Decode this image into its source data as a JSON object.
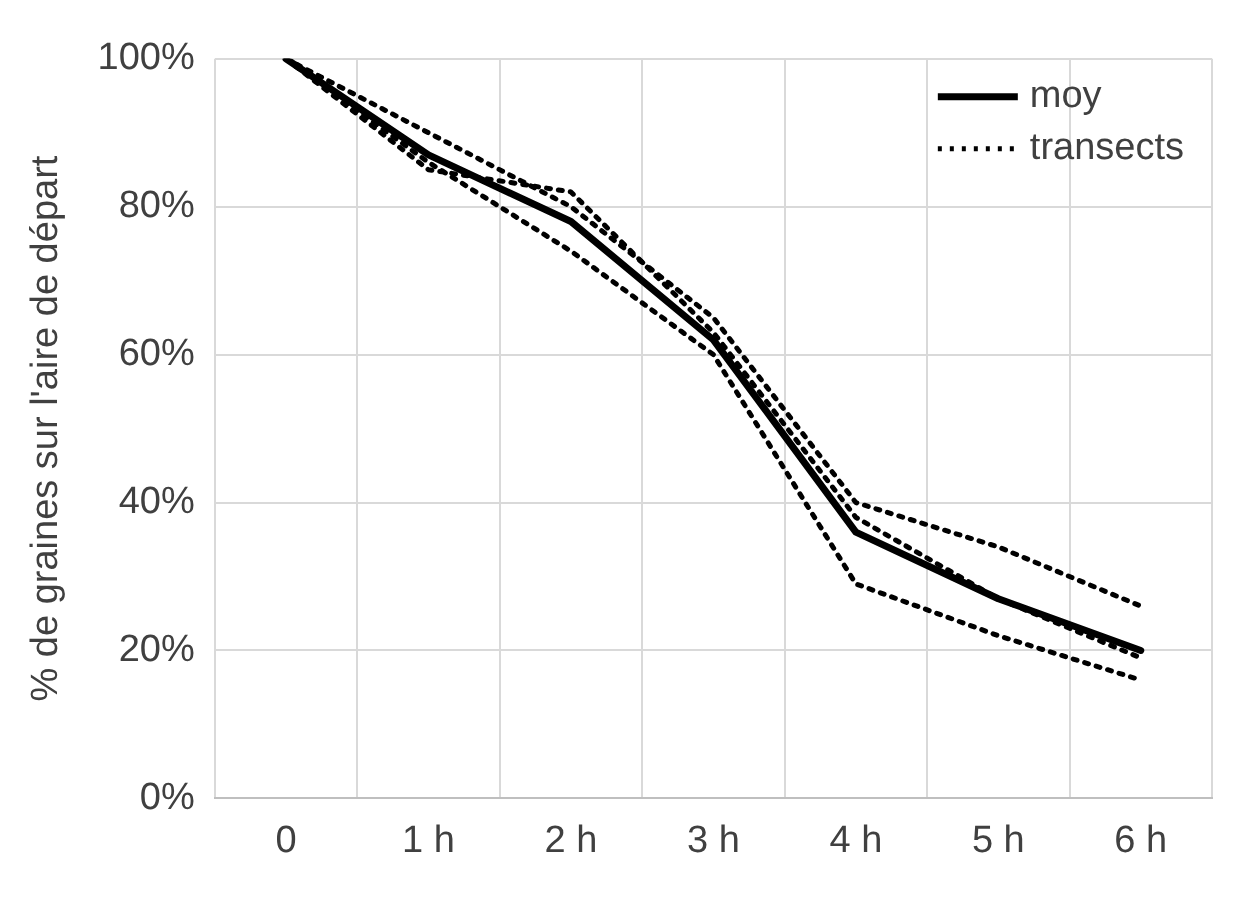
{
  "chart_data": {
    "type": "line",
    "ylabel": "% de graines sur l'aire de départ",
    "categories": [
      "0",
      "1 h",
      "2 h",
      "3 h",
      "4 h",
      "5 h",
      "6 h"
    ],
    "series": [
      {
        "name": "moy",
        "color": "#000000",
        "line_style": "solid",
        "values": [
          100,
          87,
          78,
          62,
          36,
          27,
          20
        ]
      },
      {
        "name": "transects",
        "color": "#000000",
        "line_style": "dotted",
        "values": [
          100,
          90,
          80,
          65,
          40,
          34,
          26
        ]
      },
      {
        "color": "#000000",
        "line_style": "dotted",
        "values": [
          100,
          86,
          74,
          60,
          29,
          22,
          16
        ]
      },
      {
        "color": "#000000",
        "line_style": "dotted",
        "values": [
          100,
          85,
          82,
          63,
          38,
          27,
          19
        ]
      }
    ],
    "ylim": [
      0,
      100
    ],
    "yticks": [
      {
        "value": 0,
        "label": "0%"
      },
      {
        "value": 20,
        "label": "20%"
      },
      {
        "value": 40,
        "label": "40%"
      },
      {
        "value": 60,
        "label": "60%"
      },
      {
        "value": 80,
        "label": "80%"
      },
      {
        "value": 100,
        "label": "100%"
      }
    ],
    "grid": true,
    "legend": "top right",
    "marker": "none"
  }
}
